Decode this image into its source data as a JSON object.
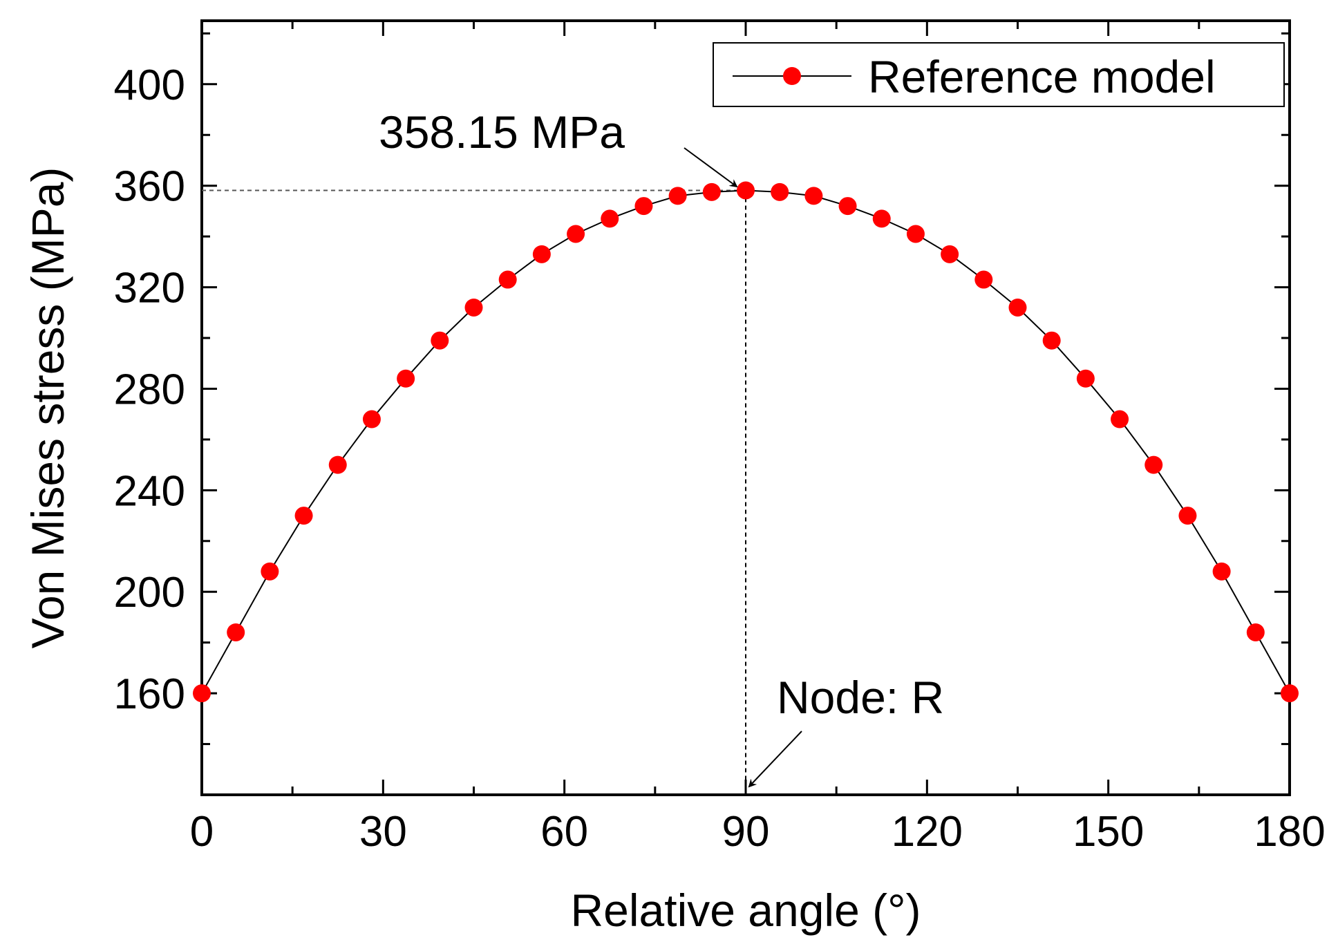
{
  "chart_data": {
    "type": "line",
    "xlabel": "Relative angle (°)",
    "ylabel": "Von Mises stress (MPa)",
    "xlim": [
      0,
      180
    ],
    "ylim": [
      120,
      425
    ],
    "xticks": [
      0,
      30,
      60,
      90,
      120,
      150,
      180
    ],
    "yticks": [
      160,
      200,
      240,
      280,
      320,
      360,
      400
    ],
    "xtick_labels": [
      "0",
      "30",
      "60",
      "90",
      "120",
      "150",
      "180"
    ],
    "ytick_labels": [
      "160",
      "200",
      "240",
      "280",
      "320",
      "360",
      "400"
    ],
    "grid": false,
    "legend_position": "top-right",
    "series": [
      {
        "name": "Reference model",
        "color": "#ff0000",
        "line_color": "#000000",
        "marker": "circle",
        "x": [
          0,
          5.625,
          11.25,
          16.875,
          22.5,
          28.125,
          33.75,
          39.375,
          45,
          50.625,
          56.25,
          61.875,
          67.5,
          73.125,
          78.75,
          84.375,
          90,
          95.625,
          101.25,
          106.875,
          112.5,
          118.125,
          123.75,
          129.375,
          135,
          140.625,
          146.25,
          151.875,
          157.5,
          163.125,
          168.75,
          174.375,
          180
        ],
        "values": [
          160,
          184,
          208,
          230,
          250,
          268,
          284,
          299,
          312,
          323,
          333,
          341,
          347,
          352,
          356,
          357.5,
          358.15,
          357.5,
          356,
          352,
          347,
          341,
          333,
          323,
          312,
          299,
          284,
          268,
          250,
          230,
          208,
          184,
          160
        ]
      }
    ],
    "annotations": [
      {
        "text": "358.15 MPa",
        "x": 90,
        "y": 358.15
      },
      {
        "text": "Node: R",
        "x": 90,
        "y": 120
      }
    ]
  },
  "legend": {
    "label": "Reference model"
  },
  "annotation_max": {
    "text": "358.15 MPa"
  },
  "annotation_node": {
    "text": "Node: R"
  }
}
